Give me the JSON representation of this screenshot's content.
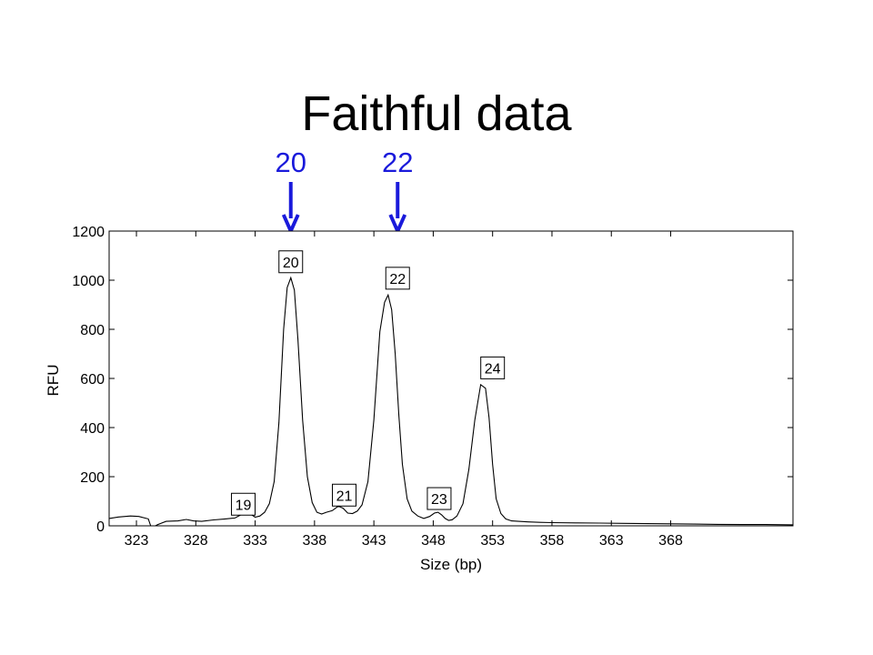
{
  "slide": {
    "title": "Faithful data"
  },
  "callouts": [
    {
      "text": "20",
      "x": 336.0,
      "color": "#1a1adb"
    },
    {
      "text": "22",
      "x": 345.0,
      "color": "#1a1adb"
    }
  ],
  "chart_data": {
    "type": "line",
    "title": "",
    "xlabel": "Size (bp)",
    "ylabel": "RFU",
    "xlim": [
      320.7,
      378.3
    ],
    "ylim": [
      0,
      1200
    ],
    "x_ticks": [
      323,
      328,
      333,
      338,
      343,
      348,
      353,
      358,
      363,
      368
    ],
    "y_ticks": [
      0,
      200,
      400,
      600,
      800,
      1000,
      1200
    ],
    "grid": false,
    "legend": "none",
    "series": [
      {
        "color": "#000000",
        "x": [
          320.7,
          321.5,
          322.5,
          323.2,
          324.0,
          324.2,
          324.6,
          324.8,
          325.5,
          326.5,
          327.2,
          327.8,
          328.5,
          329.5,
          330.5,
          331.3,
          331.8,
          332.2,
          332.6,
          333.0,
          333.4,
          333.8,
          334.2,
          334.6,
          335.0,
          335.4,
          335.7,
          336.0,
          336.3,
          336.6,
          337.0,
          337.4,
          337.8,
          338.2,
          338.6,
          339.0,
          339.5,
          340.0,
          340.4,
          340.8,
          341.2,
          341.6,
          342.0,
          342.5,
          343.0,
          343.5,
          343.9,
          344.2,
          344.5,
          344.8,
          345.1,
          345.4,
          345.8,
          346.2,
          346.7,
          347.2,
          347.7,
          348.1,
          348.4,
          348.7,
          349.0,
          349.3,
          349.6,
          350.0,
          350.5,
          351.0,
          351.5,
          352.0,
          352.4,
          352.7,
          353.0,
          353.3,
          353.7,
          354.1,
          354.6,
          355.2,
          356.0,
          357.0,
          358.0,
          360.0,
          362.0,
          364.0,
          366.0,
          368.0,
          370.0,
          372.0,
          374.0,
          376.0,
          378.3
        ],
        "values": [
          30,
          36,
          40,
          38,
          28,
          0,
          0,
          5,
          18,
          20,
          26,
          20,
          18,
          24,
          28,
          32,
          45,
          55,
          48,
          35,
          40,
          55,
          90,
          180,
          420,
          800,
          970,
          1010,
          960,
          760,
          430,
          200,
          95,
          55,
          48,
          55,
          62,
          80,
          72,
          52,
          50,
          60,
          85,
          180,
          430,
          790,
          910,
          940,
          880,
          700,
          450,
          250,
          110,
          60,
          40,
          30,
          38,
          52,
          55,
          45,
          30,
          22,
          25,
          40,
          90,
          230,
          430,
          575,
          560,
          440,
          250,
          110,
          50,
          28,
          20,
          18,
          16,
          14,
          13,
          12,
          11,
          10,
          9,
          8,
          7,
          6,
          5,
          5,
          4
        ]
      }
    ],
    "peak_labels": [
      {
        "text": "19",
        "x": 332.0,
        "y": 25
      },
      {
        "text": "20",
        "x": 336.0,
        "y": 1012
      },
      {
        "text": "21",
        "x": 340.5,
        "y": 62
      },
      {
        "text": "22",
        "x": 345.0,
        "y": 945
      },
      {
        "text": "23",
        "x": 348.5,
        "y": 48
      },
      {
        "text": "24",
        "x": 353.0,
        "y": 580
      }
    ]
  }
}
